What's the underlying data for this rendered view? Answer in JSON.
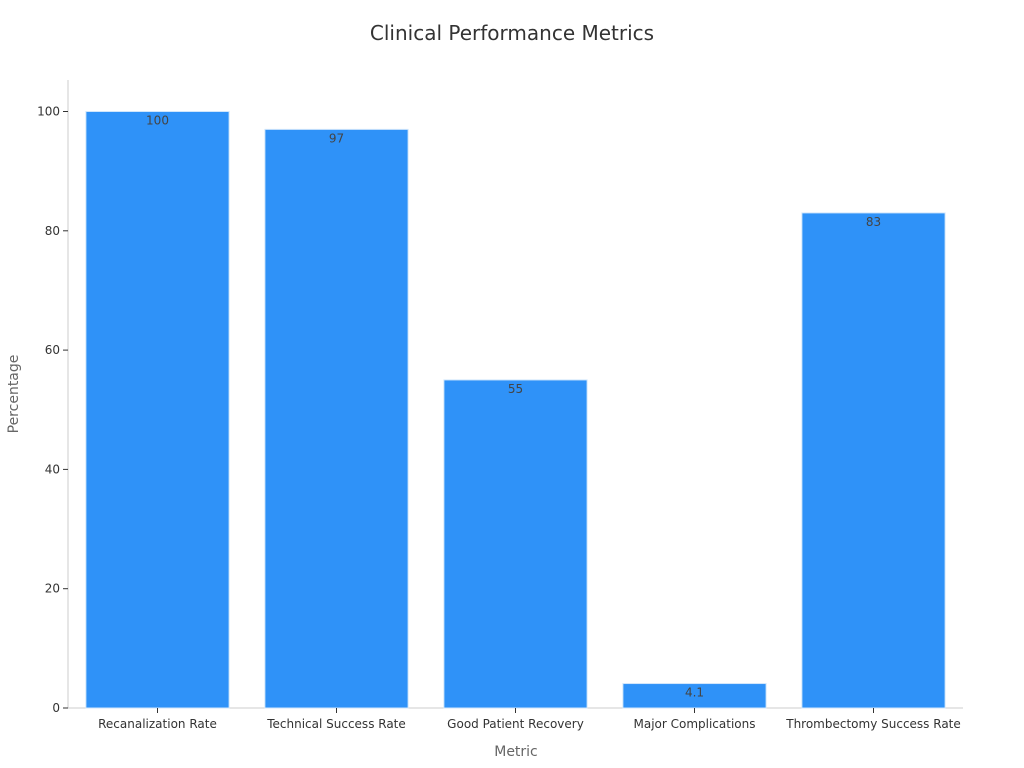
{
  "chart_data": {
    "type": "bar",
    "title": "Clinical Performance Metrics",
    "xlabel": "Metric",
    "ylabel": "Percentage",
    "categories": [
      "Recanalization Rate",
      "Technical Success Rate",
      "Good Patient Recovery",
      "Major Complications",
      "Thrombectomy Success Rate"
    ],
    "values": [
      100,
      97,
      55,
      4.1,
      83
    ],
    "value_labels": [
      "100",
      "97",
      "55",
      "4.1",
      "83"
    ],
    "ylim": [
      0,
      105
    ],
    "yticks": [
      0,
      20,
      40,
      60,
      80,
      100
    ],
    "ytick_labels": [
      "0",
      "20",
      "40",
      "60",
      "80",
      "100"
    ],
    "grid": false,
    "bar_color": "#2f92f8",
    "bar_edge_color": "#d0e6fb"
  }
}
